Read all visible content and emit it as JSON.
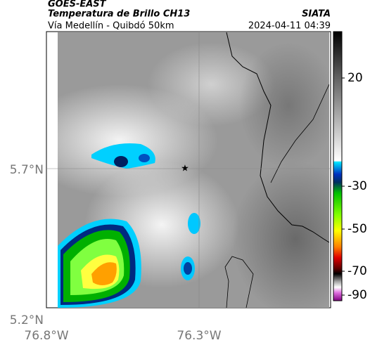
{
  "header": {
    "source": "GOES-EAST",
    "product": "Temperatura de Brillo CH13",
    "agency": "SIATA",
    "route": "Vía Medellín - Quibdó 50km",
    "timestamp": "2024-04-11 04:39"
  },
  "axes": {
    "lat_labels": [
      "5.7°N",
      "5.2°N"
    ],
    "lon_labels": [
      "76.8°W",
      "76.3°W"
    ]
  },
  "colorbar": {
    "tick_labels": [
      "20",
      "-30",
      "-50",
      "-70",
      "-90"
    ]
  }
}
